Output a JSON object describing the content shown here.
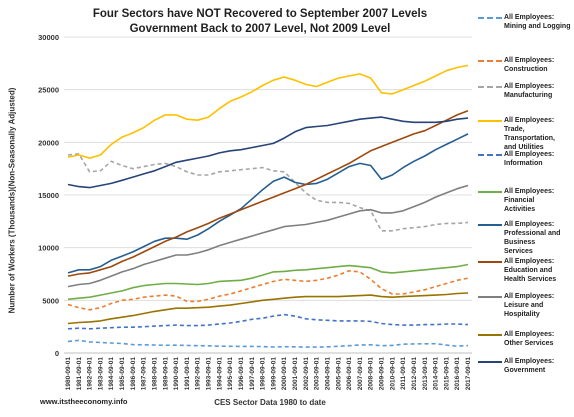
{
  "chart_data": {
    "type": "line",
    "title": "Four Sectors have NOT Recovered to September 2007 Levels",
    "subtitle": "Government Back to 2007 Level, Not 2009 Level",
    "ylabel": "Number of Workers (Thousands)(Non-Seasonally Adjusted)",
    "xlabel": "CES Sector Data 1980 to date",
    "source": "www.itstheeconomy.info",
    "ylim": [
      0,
      30000
    ],
    "yticks": [
      "0",
      "5000",
      "10000",
      "15000",
      "20000",
      "25000",
      "30000"
    ],
    "x": [
      "1980-09-01",
      "1981-09-01",
      "1982-09-01",
      "1983-09-01",
      "1984-09-01",
      "1985-09-01",
      "1986-09-01",
      "1987-09-01",
      "1988-09-01",
      "1989-09-01",
      "1990-09-01",
      "1991-09-01",
      "1992-09-01",
      "1993-09-01",
      "1994-09-01",
      "1995-09-01",
      "1996-09-01",
      "1997-09-01",
      "1998-09-01",
      "1999-09-01",
      "2000-09-01",
      "2001-09-01",
      "2002-09-01",
      "2003-09-01",
      "2004-09-01",
      "2005-09-01",
      "2006-09-01",
      "2007-09-01",
      "2008-09-01",
      "2009-09-01",
      "2010-09-01",
      "2011-09-01",
      "2012-09-01",
      "2013-09-01",
      "2014-09-01",
      "2015-09-01",
      "2016-09-01",
      "2017-09-01"
    ],
    "legend_position": "right",
    "series": [
      {
        "name": "All Employees: Mining and Logging",
        "color": "#5b9bd5",
        "dash": "4,3",
        "values": [
          1100,
          1200,
          1050,
          1000,
          950,
          900,
          800,
          780,
          760,
          730,
          740,
          720,
          690,
          680,
          650,
          640,
          630,
          630,
          610,
          570,
          600,
          590,
          560,
          560,
          590,
          640,
          690,
          760,
          780,
          690,
          720,
          840,
          860,
          870,
          880,
          750,
          650,
          700
        ]
      },
      {
        "name": "All Employees: Construction",
        "color": "#ed7d31",
        "dash": "4,3",
        "values": [
          4600,
          4300,
          4100,
          4300,
          4700,
          5000,
          5100,
          5300,
          5400,
          5500,
          5400,
          4900,
          4900,
          5100,
          5400,
          5600,
          5900,
          6200,
          6500,
          6800,
          7000,
          6900,
          6800,
          6900,
          7100,
          7400,
          7800,
          7700,
          7000,
          6100,
          5600,
          5600,
          5800,
          6000,
          6300,
          6600,
          6900,
          7100
        ]
      },
      {
        "name": "All Employees: Manufacturing",
        "color": "#a5a5a5",
        "dash": "4,3",
        "values": [
          18800,
          18900,
          17200,
          17300,
          18200,
          17800,
          17500,
          17700,
          17900,
          18000,
          17700,
          17200,
          16900,
          16900,
          17200,
          17300,
          17400,
          17500,
          17600,
          17300,
          17200,
          16200,
          15200,
          14500,
          14300,
          14300,
          14200,
          13800,
          13500,
          11600,
          11600,
          11800,
          11900,
          12000,
          12200,
          12300,
          12300,
          12400
        ]
      },
      {
        "name": "All Employees: Trade,\nTransportation,\nand Utilities",
        "color": "#ffc000",
        "dash": "",
        "values": [
          18600,
          18800,
          18500,
          18800,
          19800,
          20500,
          20900,
          21400,
          22100,
          22600,
          22600,
          22200,
          22100,
          22400,
          23200,
          23900,
          24300,
          24800,
          25400,
          25900,
          26200,
          25900,
          25500,
          25300,
          25700,
          26100,
          26300,
          26500,
          26100,
          24700,
          24600,
          25000,
          25400,
          25800,
          26300,
          26800,
          27100,
          27300
        ]
      },
      {
        "name": "All Employees: Information",
        "color": "#4472c4",
        "dash": "4,3",
        "values": [
          2300,
          2350,
          2300,
          2350,
          2400,
          2450,
          2450,
          2500,
          2550,
          2600,
          2650,
          2600,
          2600,
          2650,
          2750,
          2850,
          3000,
          3200,
          3300,
          3500,
          3650,
          3500,
          3250,
          3150,
          3100,
          3050,
          3050,
          3050,
          3000,
          2800,
          2700,
          2650,
          2650,
          2700,
          2700,
          2750,
          2750,
          2700
        ]
      },
      {
        "name": "All Employees: Financial\nActivities",
        "color": "#70ad47",
        "dash": "",
        "values": [
          5100,
          5200,
          5300,
          5500,
          5700,
          5900,
          6200,
          6400,
          6500,
          6600,
          6600,
          6550,
          6500,
          6600,
          6800,
          6850,
          6900,
          7100,
          7400,
          7700,
          7750,
          7850,
          7900,
          8000,
          8100,
          8200,
          8300,
          8200,
          8100,
          7700,
          7600,
          7700,
          7800,
          7900,
          8000,
          8100,
          8200,
          8400
        ]
      },
      {
        "name": "All Employees:\nProfessional and\nBusiness\nServices",
        "color": "#255e91",
        "dash": "",
        "values": [
          7600,
          7900,
          7900,
          8200,
          8800,
          9200,
          9600,
          10100,
          10600,
          10900,
          10900,
          10800,
          11200,
          11800,
          12500,
          13100,
          13700,
          14600,
          15500,
          16300,
          16700,
          16200,
          16000,
          16100,
          16500,
          17100,
          17700,
          18000,
          17800,
          16500,
          16900,
          17600,
          18200,
          18700,
          19300,
          19800,
          20300,
          20800
        ]
      },
      {
        "name": "All Employees:\nEducation and\nHealth Services",
        "color": "#9e480e",
        "dash": "",
        "values": [
          7300,
          7500,
          7600,
          7900,
          8200,
          8700,
          9100,
          9600,
          10100,
          10600,
          11000,
          11500,
          11900,
          12300,
          12800,
          13200,
          13600,
          14000,
          14400,
          14800,
          15200,
          15600,
          16000,
          16500,
          17000,
          17500,
          18000,
          18600,
          19200,
          19600,
          20000,
          20400,
          20800,
          21100,
          21600,
          22100,
          22600,
          23000
        ]
      },
      {
        "name": "All Employees:\nLeisure and\nHospitality",
        "color": "#7f7f7f",
        "dash": "",
        "values": [
          6300,
          6500,
          6600,
          6900,
          7300,
          7700,
          8000,
          8400,
          8700,
          9000,
          9300,
          9300,
          9500,
          9800,
          10200,
          10500,
          10800,
          11100,
          11400,
          11700,
          12000,
          12100,
          12200,
          12400,
          12600,
          12900,
          13200,
          13500,
          13600,
          13300,
          13300,
          13500,
          13900,
          14300,
          14800,
          15200,
          15600,
          15900
        ]
      },
      {
        "name": "All Employees:\nOther Services",
        "color": "#997300",
        "dash": "",
        "values": [
          2800,
          2900,
          2950,
          3050,
          3250,
          3400,
          3550,
          3750,
          3950,
          4100,
          4250,
          4250,
          4300,
          4350,
          4450,
          4550,
          4700,
          4850,
          5000,
          5100,
          5200,
          5300,
          5350,
          5350,
          5350,
          5350,
          5400,
          5450,
          5500,
          5350,
          5300,
          5350,
          5400,
          5450,
          5500,
          5550,
          5650,
          5700
        ]
      },
      {
        "name": "All Employees:\nGovernment",
        "color": "#264478",
        "dash": "",
        "values": [
          16000,
          15800,
          15700,
          15900,
          16100,
          16400,
          16700,
          17000,
          17300,
          17700,
          18100,
          18300,
          18500,
          18700,
          19000,
          19200,
          19300,
          19500,
          19700,
          19900,
          20400,
          21000,
          21400,
          21500,
          21600,
          21800,
          22000,
          22200,
          22300,
          22400,
          22200,
          22000,
          21900,
          21900,
          21900,
          22000,
          22200,
          22300
        ]
      }
    ]
  }
}
